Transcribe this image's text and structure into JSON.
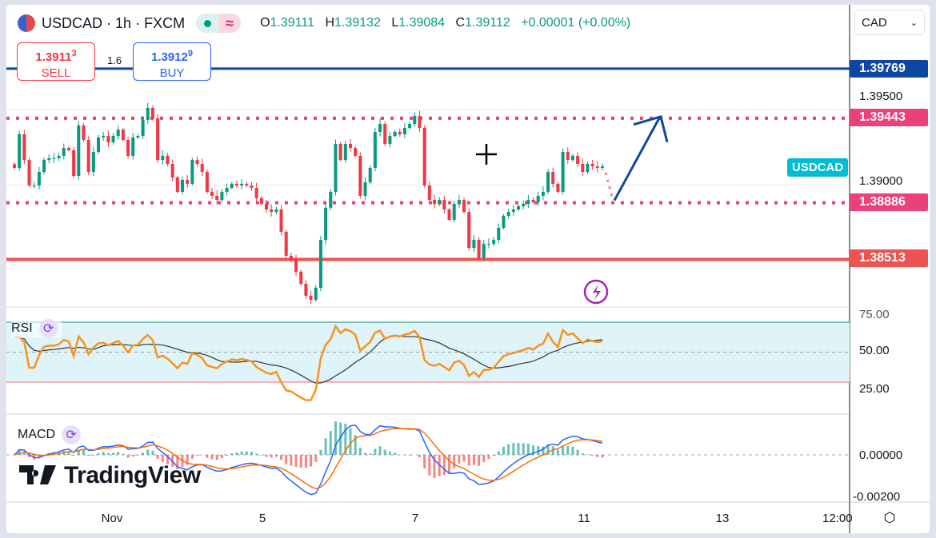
{
  "header": {
    "symbol": "USDCAD",
    "sep": "·",
    "interval": "1h",
    "exchange": "FXCM",
    "market_open_icon": "green-dot-icon",
    "indicator_icon": "wave-icon",
    "ohlc": [
      {
        "k": "O",
        "v": "1.39111"
      },
      {
        "k": "H",
        "v": "1.39132"
      },
      {
        "k": "L",
        "v": "1.39084"
      },
      {
        "k": "C",
        "v": "1.39112"
      }
    ],
    "change": "+0.00001 (+0.00%)"
  },
  "trade": {
    "sell_price": "1.3911",
    "sell_sup": "3",
    "sell_label": "SELL",
    "spread": "1.6",
    "buy_price": "1.3912",
    "buy_sup": "9",
    "buy_label": "BUY"
  },
  "currency_select": {
    "value": "CAD"
  },
  "price_labels": [
    {
      "value": "1.39769",
      "color": "#0d47a1",
      "style": "solid"
    },
    {
      "value": "1.39443",
      "color": "#e91e63",
      "style": "dotted"
    },
    {
      "value": "1.38886",
      "color": "#e91e63",
      "style": "dotted"
    },
    {
      "value": "1.38513",
      "color": "#ef5350",
      "style": "solid"
    }
  ],
  "symbol_tag": {
    "text": "USDCAD",
    "color": "#00bcd4"
  },
  "indicators": {
    "rsi": "RSI",
    "macd": "MACD"
  },
  "branding": "TradingView",
  "chart_data": {
    "type": "candlestick",
    "title": "USDCAD · 1h · FXCM",
    "price_axis": {
      "ticks": [
        "1.39500",
        "1.39000"
      ],
      "range": [
        1.3818,
        1.399
      ]
    },
    "time_axis": {
      "ticks": [
        "Nov",
        "5",
        "7",
        "11",
        "13",
        "12:00"
      ]
    },
    "closes": [
      1.39116,
      1.39337,
      1.39168,
      1.39,
      1.39,
      1.39089,
      1.39168,
      1.39179,
      1.39179,
      1.39195,
      1.39247,
      1.39232,
      1.39063,
      1.39395,
      1.393,
      1.39089,
      1.39221,
      1.39316,
      1.39326,
      1.39284,
      1.39326,
      1.39368,
      1.393,
      1.39195,
      1.39316,
      1.39326,
      1.39432,
      1.39511,
      1.39442,
      1.39168,
      1.39195,
      1.39142,
      1.39053,
      1.38958,
      1.39037,
      1.39011,
      1.39168,
      1.39142,
      1.39089,
      1.38958,
      1.38932,
      1.38905,
      1.38958,
      1.38984,
      1.39011,
      1.39,
      1.39011,
      1.39,
      1.38984,
      1.38916,
      1.38879,
      1.38842,
      1.38826,
      1.38842,
      1.38695,
      1.38537,
      1.38511,
      1.38432,
      1.38353,
      1.38274,
      1.38247,
      1.38326,
      1.38642,
      1.38853,
      1.38958,
      1.39274,
      1.39168,
      1.39274,
      1.39247,
      1.39195,
      1.38932,
      1.39021,
      1.39116,
      1.39353,
      1.39405,
      1.39274,
      1.39326,
      1.39353,
      1.39337,
      1.39379,
      1.39405,
      1.39458,
      1.39379,
      1.39,
      1.38905,
      1.38879,
      1.38905,
      1.38842,
      1.38774,
      1.38879,
      1.38905,
      1.38826,
      1.38589,
      1.38642,
      1.38521,
      1.38616,
      1.38616,
      1.38642,
      1.38721,
      1.388,
      1.38826,
      1.38842,
      1.38863,
      1.38879,
      1.38905,
      1.38889,
      1.38932,
      1.38958,
      1.39089,
      1.39011,
      1.38958,
      1.39221,
      1.39168,
      1.39195,
      1.39142,
      1.39089,
      1.39142,
      1.39126,
      1.39116,
      1.39126
    ],
    "levels": [
      1.39769,
      1.39443,
      1.38886,
      1.38513
    ],
    "projection": {
      "from": 1.38886,
      "to": 1.39443
    },
    "up_color": "#089981",
    "down_color": "#f23645",
    "rsi": {
      "ticks": [
        "75.00",
        "50.00",
        "25.00"
      ],
      "band": [
        30,
        70
      ],
      "line_color": "#f7931e",
      "ma_color": "#333333"
    },
    "macd": {
      "ticks": [
        "0.00000",
        "-0.00200"
      ],
      "macd_color": "#2962ff",
      "signal_color": "#ff6d00"
    }
  }
}
